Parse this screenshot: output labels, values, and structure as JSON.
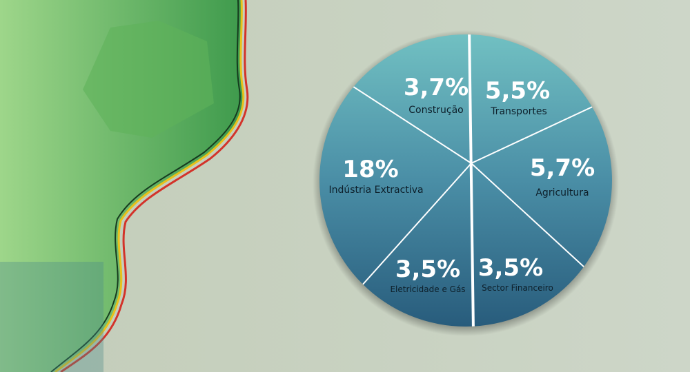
{
  "segments": [
    {
      "value_label": "3,7%",
      "name": "Construção"
    },
    {
      "value_label": "5,5%",
      "name": "Transportes"
    },
    {
      "value_label": "5,7%",
      "name": "Agricultura"
    },
    {
      "value_label": "3,5%",
      "name": "Sector Financeiro"
    },
    {
      "value_label": "3,5%",
      "name": "Eletricidade e Gás"
    },
    {
      "value_label": "18%",
      "name": "Indústria Extractiva"
    }
  ]
}
